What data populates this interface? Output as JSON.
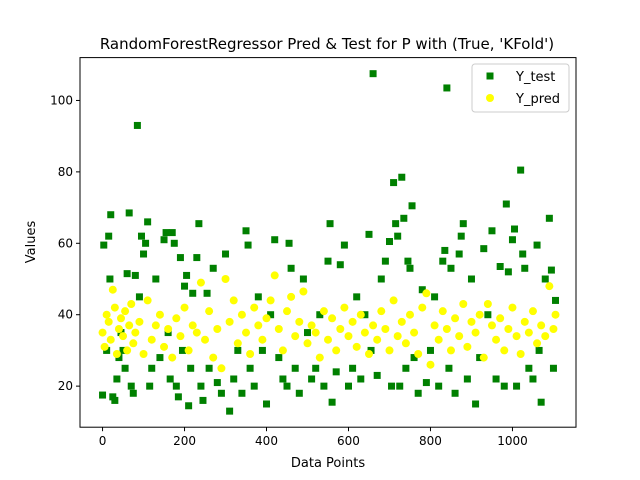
{
  "chart_data": {
    "type": "scatter",
    "title": "RandomForestRegressor Pred & Test for P with (True, 'KFold')",
    "xlabel": "Data Points",
    "ylabel": "Values",
    "xlim": [
      -55,
      1155
    ],
    "ylim": [
      8.5,
      112
    ],
    "x_ticks": [
      0,
      200,
      400,
      600,
      800,
      1000
    ],
    "y_ticks": [
      20,
      40,
      60,
      80,
      100
    ],
    "grid": false,
    "legend_position": "top-right",
    "series": [
      {
        "name": "Y_test",
        "marker": "square",
        "color": "#008000",
        "points": [
          [
            0,
            17.5
          ],
          [
            3,
            59.5
          ],
          [
            10,
            30
          ],
          [
            15,
            62
          ],
          [
            18,
            50
          ],
          [
            20,
            68
          ],
          [
            25,
            17
          ],
          [
            30,
            16
          ],
          [
            35,
            22
          ],
          [
            40,
            28
          ],
          [
            45,
            35
          ],
          [
            50,
            30
          ],
          [
            55,
            25
          ],
          [
            60,
            51.5
          ],
          [
            65,
            68.5
          ],
          [
            70,
            20
          ],
          [
            75,
            18
          ],
          [
            80,
            51
          ],
          [
            85,
            93
          ],
          [
            90,
            45
          ],
          [
            95,
            62
          ],
          [
            100,
            57
          ],
          [
            105,
            60
          ],
          [
            110,
            66
          ],
          [
            115,
            20
          ],
          [
            120,
            25
          ],
          [
            130,
            50
          ],
          [
            140,
            28
          ],
          [
            150,
            61
          ],
          [
            155,
            63
          ],
          [
            160,
            35
          ],
          [
            165,
            22
          ],
          [
            170,
            63
          ],
          [
            175,
            60
          ],
          [
            180,
            20
          ],
          [
            185,
            17
          ],
          [
            190,
            56
          ],
          [
            195,
            30
          ],
          [
            200,
            48
          ],
          [
            205,
            51
          ],
          [
            210,
            14.5
          ],
          [
            215,
            25
          ],
          [
            220,
            46
          ],
          [
            230,
            56
          ],
          [
            235,
            65.5
          ],
          [
            240,
            20
          ],
          [
            245,
            16
          ],
          [
            255,
            46
          ],
          [
            260,
            25
          ],
          [
            270,
            53
          ],
          [
            280,
            21
          ],
          [
            290,
            18
          ],
          [
            300,
            57
          ],
          [
            310,
            13
          ],
          [
            320,
            22
          ],
          [
            330,
            30
          ],
          [
            340,
            18
          ],
          [
            350,
            63.5
          ],
          [
            355,
            59.5
          ],
          [
            360,
            25
          ],
          [
            370,
            20
          ],
          [
            380,
            45
          ],
          [
            390,
            30
          ],
          [
            400,
            15
          ],
          [
            410,
            40
          ],
          [
            420,
            61
          ],
          [
            430,
            28
          ],
          [
            440,
            22
          ],
          [
            450,
            20
          ],
          [
            455,
            60
          ],
          [
            460,
            53
          ],
          [
            470,
            25
          ],
          [
            480,
            18
          ],
          [
            490,
            50
          ],
          [
            500,
            35
          ],
          [
            510,
            22
          ],
          [
            520,
            25
          ],
          [
            530,
            40
          ],
          [
            540,
            20
          ],
          [
            550,
            55
          ],
          [
            555,
            65.5
          ],
          [
            560,
            15.5
          ],
          [
            570,
            24
          ],
          [
            580,
            54
          ],
          [
            590,
            59.5
          ],
          [
            600,
            20
          ],
          [
            610,
            25
          ],
          [
            620,
            45
          ],
          [
            630,
            22
          ],
          [
            640,
            40
          ],
          [
            650,
            62.5
          ],
          [
            655,
            30
          ],
          [
            660,
            107.5
          ],
          [
            670,
            23
          ],
          [
            680,
            50
          ],
          [
            690,
            55
          ],
          [
            700,
            60.5
          ],
          [
            705,
            20
          ],
          [
            710,
            77
          ],
          [
            715,
            65.5
          ],
          [
            720,
            62
          ],
          [
            725,
            20
          ],
          [
            730,
            78.5
          ],
          [
            735,
            67
          ],
          [
            740,
            25
          ],
          [
            745,
            55
          ],
          [
            750,
            53
          ],
          [
            755,
            70.5
          ],
          [
            760,
            28
          ],
          [
            770,
            18
          ],
          [
            780,
            47
          ],
          [
            790,
            21
          ],
          [
            800,
            30
          ],
          [
            810,
            45
          ],
          [
            820,
            20
          ],
          [
            830,
            55
          ],
          [
            835,
            58
          ],
          [
            840,
            103.5
          ],
          [
            845,
            25
          ],
          [
            850,
            53
          ],
          [
            860,
            18
          ],
          [
            870,
            57
          ],
          [
            875,
            62
          ],
          [
            880,
            65.5
          ],
          [
            890,
            22
          ],
          [
            900,
            50
          ],
          [
            910,
            15
          ],
          [
            920,
            28
          ],
          [
            930,
            58.5
          ],
          [
            940,
            40
          ],
          [
            950,
            63.5
          ],
          [
            960,
            22
          ],
          [
            970,
            53.5
          ],
          [
            980,
            20
          ],
          [
            985,
            71
          ],
          [
            990,
            52
          ],
          [
            1000,
            61
          ],
          [
            1005,
            64
          ],
          [
            1010,
            20
          ],
          [
            1020,
            80.5
          ],
          [
            1025,
            57
          ],
          [
            1030,
            53
          ],
          [
            1040,
            25
          ],
          [
            1050,
            22
          ],
          [
            1060,
            59.5
          ],
          [
            1065,
            30
          ],
          [
            1070,
            15.5
          ],
          [
            1080,
            50
          ],
          [
            1090,
            67
          ],
          [
            1095,
            52.5
          ],
          [
            1100,
            25
          ],
          [
            1105,
            44
          ]
        ]
      },
      {
        "name": "Y_pred",
        "marker": "circle",
        "color": "#ffff00",
        "points": [
          [
            0,
            35
          ],
          [
            5,
            31
          ],
          [
            10,
            40
          ],
          [
            15,
            38
          ],
          [
            20,
            33
          ],
          [
            25,
            47
          ],
          [
            30,
            42
          ],
          [
            35,
            29
          ],
          [
            40,
            36
          ],
          [
            45,
            39
          ],
          [
            50,
            34
          ],
          [
            55,
            41
          ],
          [
            60,
            30
          ],
          [
            65,
            37
          ],
          [
            70,
            43
          ],
          [
            75,
            32
          ],
          [
            80,
            35
          ],
          [
            90,
            38
          ],
          [
            100,
            29
          ],
          [
            110,
            44
          ],
          [
            120,
            33
          ],
          [
            130,
            37
          ],
          [
            140,
            40
          ],
          [
            150,
            31
          ],
          [
            160,
            36
          ],
          [
            170,
            28
          ],
          [
            180,
            39
          ],
          [
            190,
            34
          ],
          [
            200,
            42
          ],
          [
            210,
            30
          ],
          [
            220,
            37
          ],
          [
            230,
            35
          ],
          [
            240,
            49
          ],
          [
            250,
            33
          ],
          [
            260,
            41
          ],
          [
            270,
            28
          ],
          [
            280,
            36
          ],
          [
            290,
            25
          ],
          [
            300,
            50
          ],
          [
            310,
            38
          ],
          [
            320,
            44
          ],
          [
            330,
            32
          ],
          [
            340,
            40
          ],
          [
            350,
            35
          ],
          [
            360,
            29
          ],
          [
            370,
            42
          ],
          [
            380,
            37
          ],
          [
            390,
            33
          ],
          [
            400,
            39
          ],
          [
            410,
            44
          ],
          [
            420,
            51
          ],
          [
            430,
            36
          ],
          [
            440,
            30
          ],
          [
            450,
            41
          ],
          [
            460,
            45
          ],
          [
            470,
            34
          ],
          [
            480,
            38
          ],
          [
            490,
            46.5
          ],
          [
            500,
            32
          ],
          [
            510,
            37
          ],
          [
            520,
            35
          ],
          [
            530,
            28
          ],
          [
            540,
            41
          ],
          [
            550,
            33
          ],
          [
            560,
            39
          ],
          [
            570,
            30
          ],
          [
            580,
            36
          ],
          [
            590,
            42
          ],
          [
            600,
            34
          ],
          [
            610,
            38
          ],
          [
            620,
            31
          ],
          [
            630,
            40
          ],
          [
            640,
            35
          ],
          [
            650,
            29
          ],
          [
            660,
            37
          ],
          [
            670,
            33
          ],
          [
            680,
            41
          ],
          [
            690,
            36
          ],
          [
            700,
            30
          ],
          [
            710,
            44
          ],
          [
            720,
            34
          ],
          [
            730,
            38
          ],
          [
            740,
            32
          ],
          [
            750,
            40
          ],
          [
            760,
            35
          ],
          [
            770,
            29
          ],
          [
            780,
            42
          ],
          [
            790,
            46
          ],
          [
            800,
            26
          ],
          [
            810,
            37
          ],
          [
            820,
            33
          ],
          [
            830,
            41
          ],
          [
            840,
            36
          ],
          [
            850,
            30
          ],
          [
            860,
            39
          ],
          [
            870,
            34
          ],
          [
            880,
            43
          ],
          [
            890,
            31
          ],
          [
            900,
            38
          ],
          [
            910,
            35
          ],
          [
            920,
            40
          ],
          [
            930,
            28
          ],
          [
            940,
            43
          ],
          [
            950,
            37
          ],
          [
            960,
            33
          ],
          [
            970,
            39
          ],
          [
            980,
            30
          ],
          [
            990,
            36
          ],
          [
            1000,
            42
          ],
          [
            1010,
            34
          ],
          [
            1020,
            29
          ],
          [
            1030,
            38
          ],
          [
            1040,
            35
          ],
          [
            1050,
            41
          ],
          [
            1060,
            32
          ],
          [
            1070,
            37
          ],
          [
            1080,
            34
          ],
          [
            1090,
            48
          ],
          [
            1100,
            36
          ],
          [
            1105,
            40
          ]
        ]
      }
    ]
  }
}
